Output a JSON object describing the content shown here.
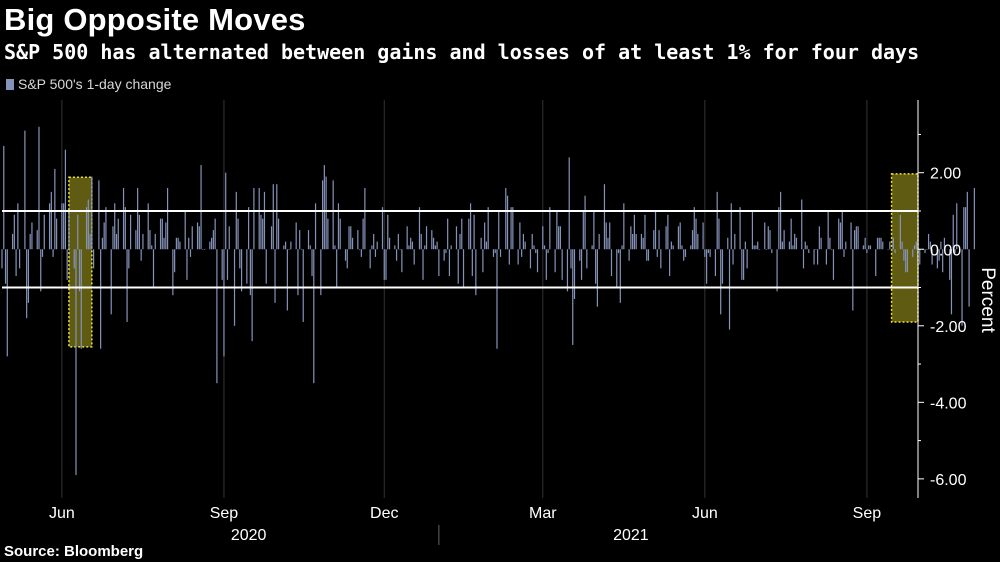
{
  "header": {
    "title": "Big Opposite Moves",
    "subtitle": "S&P 500 has alternated between gains and losses of at least 1% for four days"
  },
  "legend": {
    "label": "S&P 500's 1-day change"
  },
  "footer": {
    "source": "Source: Bloomberg"
  },
  "colors": {
    "bar": "#8593b9",
    "threshold_line": "#ffffff",
    "highlight_fill": "#7f7a18",
    "highlight_border": "#e8e23a",
    "grid": "#333333"
  },
  "chart_data": {
    "type": "bar",
    "title": "Big Opposite Moves",
    "subtitle": "S&P 500 has alternated between gains and losses of at least 1% for four days",
    "ylabel": "Percent",
    "ylim": [
      -6.5,
      3.9
    ],
    "yticks": [
      2,
      0,
      -2,
      -4,
      -6
    ],
    "ytick_labels": [
      "2.00",
      "0.00",
      "-2.00",
      "-4.00",
      "-6.00"
    ],
    "grid": "vertical only, at month ticks",
    "x_start": "2020-04-28",
    "x_end": "2021-09-30",
    "xticks": [
      {
        "date": "2020-06-01",
        "label": "Jun"
      },
      {
        "date": "2020-09-01",
        "label": "Sep"
      },
      {
        "date": "2020-12-01",
        "label": "Dec"
      },
      {
        "date": "2021-03-01",
        "label": "Mar"
      },
      {
        "date": "2021-06-01",
        "label": "Jun"
      },
      {
        "date": "2021-09-01",
        "label": "Sep"
      }
    ],
    "year_labels": [
      {
        "label": "2020",
        "center": "2020-09-15"
      },
      {
        "label": "2021",
        "center": "2021-04-20"
      }
    ],
    "year_divider": "2021-01-01",
    "reference_lines": [
      1,
      -1
    ],
    "highlights": [
      {
        "start": "2020-06-05",
        "end": "2020-06-18",
        "ymin": -2.55,
        "ymax": 1.88
      },
      {
        "start": "2021-09-15",
        "end": "2021-09-30",
        "ymin": -1.9,
        "ymax": 1.97
      }
    ],
    "series": [
      {
        "name": "S&P 500's 1-day change",
        "dates_note": "consecutive trading days starting 2020-04-28",
        "start": "2020-04-28",
        "values": [
          -0.5,
          2.7,
          -0.9,
          -2.8,
          0.4,
          0.9,
          -0.7,
          1.2,
          -0.5,
          3.1,
          -1.8,
          -1.4,
          0.4,
          0.7,
          0.5,
          3.2,
          -1.1,
          -0.2,
          0.9,
          1.2,
          1.5,
          -0.2,
          2.1,
          0.8,
          1.2,
          1.2,
          2.6,
          -0.8,
          1.0,
          -0.5,
          -5.9,
          0.9,
          -1.1,
          -2.6,
          1.1,
          1.3,
          0.4,
          1.9,
          -0.5,
          1.8,
          -2.6,
          0.3,
          0.7,
          1.1,
          -1.7,
          0.6,
          1.2,
          0.4,
          0.8,
          1.6,
          1.1,
          -1.9,
          -0.5,
          0.9,
          0.5,
          1.6,
          0.9,
          -0.3,
          0.4,
          1.2,
          0.5,
          0.1,
          -1.0,
          0.4,
          0.8,
          0.8,
          0.3,
          0.7,
          1.6,
          -1.2,
          -0.6,
          0.3,
          0.3,
          0.2,
          1.0,
          -0.8,
          0.3,
          -0.2,
          0.6,
          0.7,
          0.6,
          2.2,
          0.0,
          0.0,
          0.2,
          0.3,
          0.5,
          0.8,
          -3.5,
          -0.8,
          -2.8,
          2.0,
          -0.8,
          0.6,
          -2.0,
          1.5,
          0.8,
          -0.5,
          -1.1,
          -0.9,
          1.1,
          -1.2,
          -2.4,
          1.6,
          1.6,
          0.9,
          0.8,
          1.5,
          -0.9,
          0.6,
          1.7,
          -1.4,
          1.7,
          0.8,
          0.1,
          0.2,
          -1.6,
          0.0,
          0.2,
          0.7,
          -1.2,
          0.5,
          0.0,
          -1.9,
          0.5,
          0.1,
          -0.7,
          -3.5,
          1.2,
          -1.2,
          1.8,
          2.2,
          1.9,
          0.8,
          1.8,
          0.1,
          -1.0,
          1.2,
          0.8,
          -0.3,
          -0.5,
          0.6,
          0.6,
          0.3,
          0.5,
          0.0,
          -0.2,
          0.8,
          1.6,
          -0.5,
          0.1,
          0.4,
          -0.2,
          0.2,
          1.1,
          -0.8,
          -0.8,
          0.9,
          0.3,
          0.1,
          -0.3,
          0.4,
          0.0,
          -0.6,
          0.6,
          0.1,
          0.3,
          0.2,
          -0.4,
          1.1,
          0.4,
          -0.8,
          0.1,
          0.6,
          0.5,
          0.3,
          0.1,
          0.2,
          -0.7,
          -0.3,
          -0.1,
          0.8,
          -0.7,
          0.1,
          0.6,
          -0.9,
          0.4,
          0.8,
          -1.0,
          0.8,
          1.2,
          -0.7,
          0.9,
          -1.2,
          0.3,
          -0.6,
          0.7,
          0.2,
          1.1,
          -0.2,
          -0.1,
          -2.6,
          1.0,
          -0.2,
          1.6,
          1.4,
          -0.4,
          1.1,
          1.1,
          -0.4,
          0.7,
          -0.2,
          0.4,
          0.2,
          -0.5,
          0.4,
          0.1,
          -0.1,
          -0.6,
          0.6,
          0.1,
          -0.8,
          -0.1,
          1.1,
          -0.6,
          1.0,
          0.6,
          0.6,
          -0.8,
          -1.1,
          2.4,
          -0.5,
          -2.5,
          -1.3,
          -0.3,
          -0.8,
          1.0,
          1.4,
          -0.5,
          0.1,
          1.0,
          -0.9,
          -1.5,
          0.4,
          1.7,
          0.7,
          0.3,
          0.7,
          -0.7,
          -1.0,
          -0.1,
          -1.4,
          0.1,
          1.2,
          -0.3,
          0.6,
          0.4,
          0.9,
          0.4,
          0.4,
          0.3,
          0.9,
          -0.3,
          -0.3,
          0.5,
          1.0,
          -0.2,
          0.5,
          -0.5,
          0.6,
          0.9,
          -0.7,
          0.2,
          0.1,
          0.6,
          0.7,
          0.1,
          -0.3,
          -0.2,
          0.1,
          0.5,
          1.1,
          0.8,
          0.4,
          0.7,
          -0.2,
          -0.9,
          -0.1,
          -0.2,
          -0.7,
          1.5,
          0.8,
          -1.7,
          -0.9,
          0.3,
          -2.1,
          1.2,
          -0.4,
          0.4,
          1.1,
          -0.8,
          -0.8,
          0.2,
          -0.5,
          1.0,
          0.1,
          0.1,
          0.2,
          0.0,
          0.7,
          0.0,
          0.6,
          0.5,
          -0.1,
          -1.1,
          1.1,
          1.5,
          0.2,
          0.5,
          0.2,
          0.8,
          0.1,
          0.4,
          0.3,
          1.3,
          -0.5,
          0.2,
          0.1,
          -0.1,
          -0.4,
          0.0,
          -0.4,
          0.6,
          0.3,
          -0.4,
          1.0,
          0.3,
          0.0,
          -0.8,
          0.8,
          0.7,
          1.0,
          -0.2,
          0.2,
          0.7,
          -1.6,
          0.5,
          0.6,
          0.6,
          0.1,
          0.3,
          -0.1,
          0.1,
          0.1,
          -0.7,
          0.3,
          0.3,
          0.3,
          0.2,
          0.0,
          0.2,
          0.0,
          0.3,
          -0.1,
          0.9,
          0.2,
          -0.3,
          -0.6,
          -0.6,
          -0.2,
          0.1,
          0.2,
          0.6,
          -0.4,
          -0.1,
          0.0,
          0.4,
          0.2,
          -0.4,
          -0.5,
          -0.3,
          0.2,
          -0.6,
          0.3,
          -0.8,
          -1.7,
          0.9,
          -0.1,
          1.2,
          -2.0,
          1.1,
          1.1,
          1.5,
          -1.5,
          1.6
        ]
      }
    ]
  }
}
